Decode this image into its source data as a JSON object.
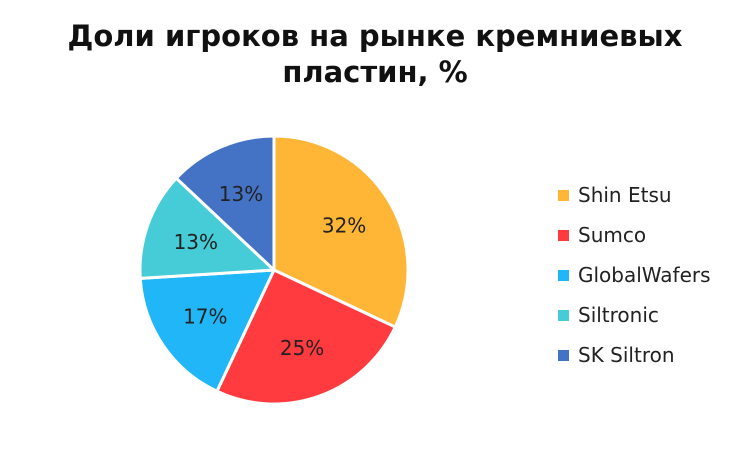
{
  "chart_data": {
    "type": "pie",
    "title_lines": [
      "Доли игроков на рынке кремниевых",
      "пластин, %"
    ],
    "categories": [
      "Shin Etsu",
      "Sumco",
      "GlobalWafers",
      "Siltronic",
      "SK Siltron"
    ],
    "values": [
      32,
      25,
      17,
      13,
      13
    ],
    "data_labels": [
      "32%",
      "25%",
      "17%",
      "13%",
      "13%"
    ],
    "colors": [
      "#FFB535",
      "#FF3B3F",
      "#21B6F7",
      "#45CCD6",
      "#4472C4"
    ],
    "legend_position": "right",
    "start_angle": "top",
    "direction": "clockwise"
  }
}
